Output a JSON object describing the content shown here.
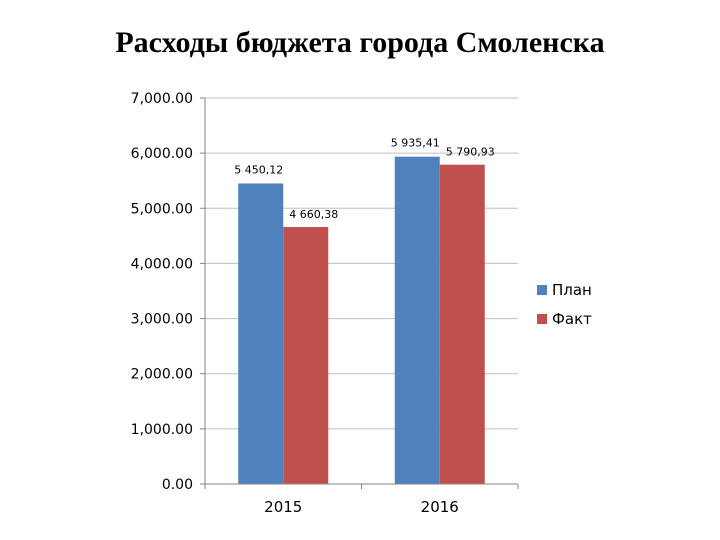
{
  "title": "Расходы бюджета города Смоленска",
  "colors": {
    "plan": "#4F81BD",
    "fact": "#C0504D",
    "grid": "#BFBFBF",
    "axis": "#868686"
  },
  "chart_data": {
    "type": "bar",
    "categories": [
      "2015",
      "2016"
    ],
    "series": [
      {
        "name": "План",
        "values": [
          5450.12,
          5935.41
        ],
        "labels": [
          "5 450,12",
          "5 935,41"
        ]
      },
      {
        "name": "Факт",
        "values": [
          4660.38,
          5790.93
        ],
        "labels": [
          "4 660,38",
          "5 790,93"
        ]
      }
    ],
    "ylim": [
      0,
      7000
    ],
    "yticks": [
      0,
      1000,
      2000,
      3000,
      4000,
      5000,
      6000,
      7000
    ],
    "ytick_labels": [
      "0.00",
      "1,000.00",
      "2,000.00",
      "3,000.00",
      "4,000.00",
      "5,000.00",
      "6,000.00",
      "7,000.00"
    ],
    "grid": true,
    "legend": "right"
  }
}
